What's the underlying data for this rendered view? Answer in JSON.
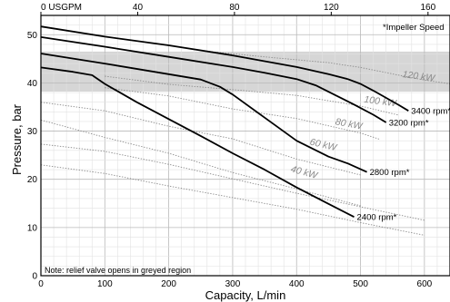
{
  "chart_data": {
    "type": "line",
    "x_unit_top": "USGPM",
    "xlabel": "Capacity, L/min",
    "ylabel": "Pressure, bar",
    "xlim": [
      0,
      640
    ],
    "ylim": [
      0,
      54
    ],
    "x_ticks": [
      0,
      100,
      200,
      300,
      400,
      500,
      600
    ],
    "y_ticks": [
      0,
      10,
      20,
      30,
      40,
      50
    ],
    "top_ticks": [
      0,
      40,
      80,
      120,
      160
    ],
    "top_tick_labels": [
      "0 USGPM",
      "40",
      "80",
      "120",
      "160"
    ],
    "lpm_per_usgpm": 3.785,
    "grid": true,
    "legend_title": "*Impeller Speed",
    "note": "Note: relief valve opens in greyed region",
    "shaded_region_y": [
      38.2,
      46.5
    ],
    "series": [
      {
        "name": "3400 rpm*",
        "x": [
          0,
          100,
          200,
          300,
          400,
          450,
          480,
          500,
          520,
          540,
          560,
          575
        ],
        "y": [
          51.7,
          49.6,
          47.8,
          45.7,
          43.3,
          41.8,
          40.8,
          39.8,
          38.4,
          36.9,
          35.4,
          34.2
        ]
      },
      {
        "name": "3200 rpm*",
        "x": [
          0,
          100,
          200,
          300,
          350,
          400,
          430,
          460,
          490,
          520,
          540
        ],
        "y": [
          49.5,
          47.5,
          45.4,
          43.3,
          42.1,
          40.8,
          39.5,
          37.5,
          35.5,
          33.4,
          31.8
        ]
      },
      {
        "name": "2800 rpm*",
        "x": [
          0,
          100,
          200,
          250,
          280,
          300,
          350,
          400,
          450,
          480,
          510
        ],
        "y": [
          46.1,
          44.0,
          41.8,
          40.7,
          39.2,
          37.6,
          32.8,
          28.0,
          24.7,
          23.3,
          21.5
        ]
      },
      {
        "name": "2400 rpm*",
        "x": [
          0,
          50,
          80,
          100,
          150,
          200,
          250,
          300,
          350,
          400,
          450,
          490
        ],
        "y": [
          43.2,
          42.3,
          41.6,
          39.8,
          36.0,
          32.5,
          29.0,
          25.4,
          22.0,
          18.3,
          14.9,
          12.2
        ]
      }
    ],
    "power_contours": [
      {
        "label": "40 kW",
        "x": [
          0,
          100,
          200,
          300,
          400,
          500
        ],
        "y": [
          32.3,
          28.7,
          25.4,
          21.4,
          18.0,
          14.5
        ],
        "label_x": 390,
        "label_y": 21.6
      },
      {
        "label": "60 kW",
        "x": [
          0,
          100,
          200,
          300,
          400,
          500
        ],
        "y": [
          36.0,
          34.2,
          31.0,
          28.4,
          24.2,
          20.9
        ],
        "label_x": 420,
        "label_y": 27.2
      },
      {
        "label": "80 kW",
        "x": [
          100,
          200,
          300,
          400,
          500,
          530
        ],
        "y": [
          39.0,
          37.3,
          34.6,
          32.6,
          29.6,
          28.3
        ],
        "label_x": 460,
        "label_y": 31.4
      },
      {
        "label": "100 kW",
        "x": [
          100,
          200,
          300,
          400,
          500,
          560
        ],
        "y": [
          41.4,
          39.7,
          38.6,
          37.4,
          35.2,
          33.3
        ],
        "label_x": 505,
        "label_y": 36.0
      },
      {
        "label": "120 kW",
        "x": [
          250,
          350,
          450,
          500,
          560,
          600,
          640
        ],
        "y": [
          46.7,
          45.4,
          44.2,
          43.2,
          41.6,
          40.6,
          39.8
        ],
        "label_x": 565,
        "label_y": 41.2
      },
      {
        "label": "",
        "x": [
          0,
          100,
          200,
          300,
          400,
          500,
          600
        ],
        "y": [
          23.0,
          21.2,
          18.6,
          16.2,
          13.8,
          11.0,
          8.4
        ],
        "label_x": 0,
        "label_y": 0
      },
      {
        "label": "",
        "x": [
          0,
          100,
          200,
          300,
          400,
          500,
          600
        ],
        "y": [
          27.3,
          25.8,
          23.1,
          20.1,
          17.1,
          14.3,
          11.5
        ],
        "label_x": 0,
        "label_y": 0
      }
    ]
  }
}
